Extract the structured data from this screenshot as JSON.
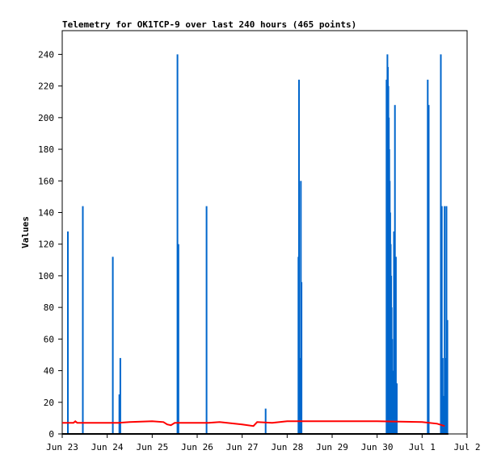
{
  "chart_data": {
    "type": "bar",
    "title": "Telemetry for OK1TCP-9 over last 240 hours (465 points)",
    "xlabel": "",
    "ylabel": "Values",
    "xlim": [
      "Jun 23 00:00",
      "Jul 2 00:00"
    ],
    "ylim": [
      0,
      255
    ],
    "x_ticks": [
      "Jun 23",
      "Jun 24",
      "Jun 25",
      "Jun 26",
      "Jun 27",
      "Jun 28",
      "Jun 29",
      "Jun 30",
      "Jul 1",
      "Jul 2"
    ],
    "y_ticks": [
      0,
      20,
      40,
      60,
      80,
      100,
      120,
      140,
      160,
      180,
      200,
      220,
      240
    ],
    "grid": false,
    "legend": "none",
    "series": [
      {
        "kind": "bars",
        "color": "#0066cc",
        "points": [
          [
            "Jun 23 03:00",
            128
          ],
          [
            "Jun 23 11:00",
            144
          ],
          [
            "Jun 24 03:00",
            112
          ],
          [
            "Jun 24 06:30",
            25
          ],
          [
            "Jun 24 07:00",
            48
          ],
          [
            "Jun 25 13:30",
            240
          ],
          [
            "Jun 25 14:00",
            120
          ],
          [
            "Jun 26 05:00",
            144
          ],
          [
            "Jun 27 12:30",
            16
          ],
          [
            "Jun 28 06:00",
            112
          ],
          [
            "Jun 28 06:20",
            224
          ],
          [
            "Jun 28 06:40",
            48
          ],
          [
            "Jun 28 07:00",
            36
          ],
          [
            "Jun 28 07:20",
            160
          ],
          [
            "Jun 28 07:40",
            96
          ],
          [
            "Jun 30 05:00",
            224
          ],
          [
            "Jun 30 05:15",
            96
          ],
          [
            "Jun 30 05:30",
            240
          ],
          [
            "Jun 30 05:45",
            232
          ],
          [
            "Jun 30 06:00",
            220
          ],
          [
            "Jun 30 06:15",
            200
          ],
          [
            "Jun 30 06:30",
            180
          ],
          [
            "Jun 30 06:45",
            160
          ],
          [
            "Jun 30 07:00",
            140
          ],
          [
            "Jun 30 07:15",
            120
          ],
          [
            "Jun 30 07:30",
            100
          ],
          [
            "Jun 30 07:45",
            80
          ],
          [
            "Jun 30 08:00",
            60
          ],
          [
            "Jun 30 08:15",
            40
          ],
          [
            "Jun 30 08:30",
            20
          ],
          [
            "Jun 30 09:00",
            128
          ],
          [
            "Jun 30 09:30",
            208
          ],
          [
            "Jun 30 10:00",
            112
          ],
          [
            "Jun 30 10:30",
            32
          ],
          [
            "Jul 1 03:00",
            224
          ],
          [
            "Jul 1 03:30",
            208
          ],
          [
            "Jul 1 10:00",
            240
          ],
          [
            "Jul 1 10:30",
            144
          ],
          [
            "Jul 1 11:00",
            48
          ],
          [
            "Jul 1 11:30",
            24
          ],
          [
            "Jul 1 12:00",
            144
          ],
          [
            "Jul 1 12:30",
            48
          ],
          [
            "Jul 1 13:00",
            144
          ],
          [
            "Jul 1 13:30",
            72
          ]
        ]
      },
      {
        "kind": "line",
        "color": "#ff0000",
        "points": [
          [
            "Jun 23 00:00",
            7
          ],
          [
            "Jun 23 06:00",
            7
          ],
          [
            "Jun 23 07:00",
            8
          ],
          [
            "Jun 23 08:00",
            7
          ],
          [
            "Jun 24 06:00",
            7
          ],
          [
            "Jun 24 12:00",
            7.5
          ],
          [
            "Jun 25 00:00",
            8
          ],
          [
            "Jun 25 06:00",
            7.5
          ],
          [
            "Jun 25 08:00",
            6
          ],
          [
            "Jun 25 10:00",
            5.5
          ],
          [
            "Jun 25 12:00",
            7
          ],
          [
            "Jun 26 06:00",
            7
          ],
          [
            "Jun 26 12:00",
            7.5
          ],
          [
            "Jun 27 00:00",
            6
          ],
          [
            "Jun 27 06:00",
            5
          ],
          [
            "Jun 27 08:00",
            7.5
          ],
          [
            "Jun 27 16:00",
            7
          ],
          [
            "Jun 28 00:00",
            8
          ],
          [
            "Jun 29 00:00",
            8
          ],
          [
            "Jun 30 00:00",
            8
          ],
          [
            "Jul 1 00:00",
            7.5
          ],
          [
            "Jul 1 08:00",
            6.5
          ],
          [
            "Jul 1 12:00",
            5
          ]
        ]
      },
      {
        "kind": "line",
        "color": "#000000",
        "points": [
          [
            "Jun 23 00:00",
            0
          ],
          [
            "Jul 1 14:00",
            0
          ]
        ]
      }
    ]
  }
}
